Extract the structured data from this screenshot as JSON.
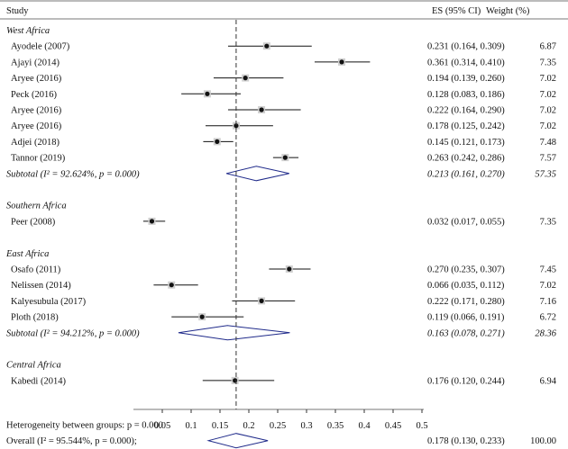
{
  "chart_data": {
    "type": "forest",
    "columns": {
      "study": "Study",
      "es": "ES (95% CI)",
      "weight": "Weight (%)"
    },
    "xaxis": {
      "min": 0.0,
      "max": 0.5,
      "ticks": [
        0.05,
        0.1,
        0.15,
        0.2,
        0.25,
        0.3,
        0.35,
        0.4,
        0.45,
        0.5
      ],
      "tick_labels": [
        "0.05",
        "0.1",
        "0.15",
        "0.2",
        "0.25",
        "0.3",
        "0.35",
        "0.4",
        "0.45",
        "0.5"
      ],
      "reference_line": 0.178
    },
    "groups": [
      {
        "name": "West Africa",
        "studies": [
          {
            "label": "Ayodele (2007)",
            "es": 0.231,
            "lo": 0.164,
            "hi": 0.309,
            "ci_text": "0.231 (0.164, 0.309)",
            "weight": "6.87"
          },
          {
            "label": "Ajayi (2014)",
            "es": 0.361,
            "lo": 0.314,
            "hi": 0.41,
            "ci_text": "0.361 (0.314, 0.410)",
            "weight": "7.35"
          },
          {
            "label": "Aryee (2016)",
            "es": 0.194,
            "lo": 0.139,
            "hi": 0.26,
            "ci_text": "0.194 (0.139, 0.260)",
            "weight": "7.02"
          },
          {
            "label": "Peck (2016)",
            "es": 0.128,
            "lo": 0.083,
            "hi": 0.186,
            "ci_text": "0.128 (0.083, 0.186)",
            "weight": "7.02"
          },
          {
            "label": "Aryee (2016)",
            "es": 0.222,
            "lo": 0.164,
            "hi": 0.29,
            "ci_text": "0.222 (0.164, 0.290)",
            "weight": "7.02"
          },
          {
            "label": "Aryee (2016)",
            "es": 0.178,
            "lo": 0.125,
            "hi": 0.242,
            "ci_text": "0.178 (0.125, 0.242)",
            "weight": "7.02"
          },
          {
            "label": "Adjei (2018)",
            "es": 0.145,
            "lo": 0.121,
            "hi": 0.173,
            "ci_text": "0.145 (0.121, 0.173)",
            "weight": "7.48"
          },
          {
            "label": "Tannor (2019)",
            "es": 0.263,
            "lo": 0.242,
            "hi": 0.286,
            "ci_text": "0.263 (0.242, 0.286)",
            "weight": "7.57"
          }
        ],
        "subtotal": {
          "label": "Subtotal (I² = 92.624%, p = 0.000)",
          "es": 0.213,
          "lo": 0.161,
          "hi": 0.27,
          "ci_text": "0.213 (0.161, 0.270)",
          "weight": "57.35"
        }
      },
      {
        "name": "Southern Africa",
        "studies": [
          {
            "label": "Peer (2008)",
            "es": 0.032,
            "lo": 0.017,
            "hi": 0.055,
            "ci_text": "0.032 (0.017, 0.055)",
            "weight": "7.35"
          }
        ]
      },
      {
        "name": "East Africa",
        "studies": [
          {
            "label": "Osafo (2011)",
            "es": 0.27,
            "lo": 0.235,
            "hi": 0.307,
            "ci_text": "0.270 (0.235, 0.307)",
            "weight": "7.45"
          },
          {
            "label": "Nelissen (2014)",
            "es": 0.066,
            "lo": 0.035,
            "hi": 0.112,
            "ci_text": "0.066 (0.035, 0.112)",
            "weight": "7.02"
          },
          {
            "label": "Kalyesubula (2017)",
            "es": 0.222,
            "lo": 0.171,
            "hi": 0.28,
            "ci_text": "0.222 (0.171, 0.280)",
            "weight": "7.16"
          },
          {
            "label": "Ploth (2018)",
            "es": 0.119,
            "lo": 0.066,
            "hi": 0.191,
            "ci_text": "0.119 (0.066, 0.191)",
            "weight": "6.72"
          }
        ],
        "subtotal": {
          "label": "Subtotal (I² = 94.212%, p = 0.000)",
          "es": 0.163,
          "lo": 0.078,
          "hi": 0.271,
          "ci_text": "0.163 (0.078, 0.271)",
          "weight": "28.36"
        }
      },
      {
        "name": "Central Africa",
        "studies": [
          {
            "label": "Kabedi (2014)",
            "es": 0.176,
            "lo": 0.12,
            "hi": 0.244,
            "ci_text": "0.176 (0.120, 0.244)",
            "weight": "6.94"
          }
        ]
      }
    ],
    "heterogeneity_text": "Heterogeneity between groups: p = 0.000",
    "overall": {
      "label": "Overall (I² = 95.544%, p = 0.000);",
      "es": 0.178,
      "lo": 0.13,
      "hi": 0.233,
      "ci_text": "0.178 (0.130, 0.233)",
      "weight": "100.00"
    }
  }
}
